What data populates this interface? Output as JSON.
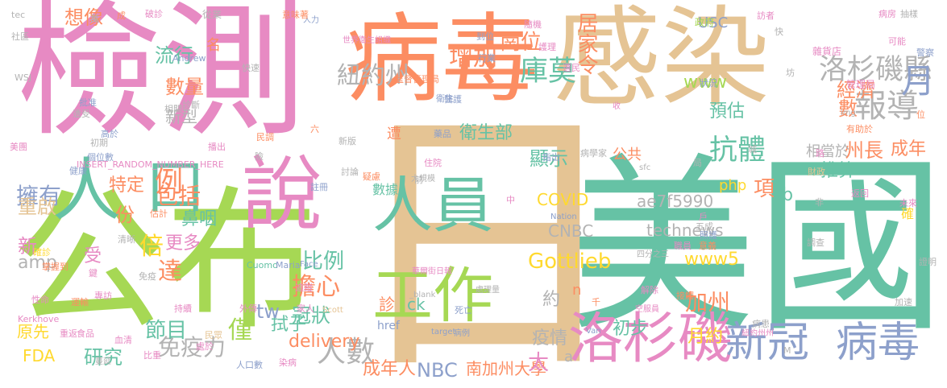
{
  "palette": {
    "pink": "#e78ac3",
    "green": "#a6d854",
    "orange": "#fc8d62",
    "teal": "#66c2a5",
    "tan": "#e5c494",
    "gray": "#b3b3b3",
    "blue": "#8da0cb",
    "yellow": "#ffd92f"
  },
  "words": [
    {
      "text": "美國",
      "color": "teal"
    },
    {
      "text": "日",
      "color": "tan"
    },
    {
      "text": "病毒",
      "color": "orange"
    },
    {
      "text": "感染",
      "color": "tan"
    },
    {
      "text": "檢測",
      "color": "pink"
    },
    {
      "text": "公布",
      "color": "green"
    },
    {
      "text": "說",
      "color": "pink"
    },
    {
      "text": "人",
      "color": "teal"
    },
    {
      "text": "口",
      "color": "teal"
    },
    {
      "text": "人員",
      "color": "teal"
    },
    {
      "text": "工作",
      "color": "green"
    },
    {
      "text": "洛杉磯",
      "color": "pink"
    },
    {
      "text": "新冠",
      "color": "blue"
    },
    {
      "text": "病毒",
      "color": "blue"
    },
    {
      "text": "報導",
      "color": "gray"
    },
    {
      "text": "洛杉磯縣",
      "color": "gray"
    },
    {
      "text": "紐約州",
      "color": "gray"
    },
    {
      "text": "增加",
      "color": "orange"
    },
    {
      "text": "崗位",
      "color": "orange"
    },
    {
      "text": "庫莫",
      "color": "teal"
    },
    {
      "text": "居家令",
      "color": "orange"
    },
    {
      "text": "抗體",
      "color": "teal"
    },
    {
      "text": "月",
      "color": "blue"
    },
    {
      "text": "經濟",
      "color": "orange"
    },
    {
      "text": "數",
      "color": "orange"
    },
    {
      "text": "州長",
      "color": "orange"
    },
    {
      "text": "成年",
      "color": "orange"
    },
    {
      "text": "人數",
      "color": "gray"
    },
    {
      "text": "免疫力",
      "color": "gray"
    },
    {
      "text": "擁有",
      "color": "blue"
    },
    {
      "text": "例",
      "color": "orange"
    },
    {
      "text": "包括",
      "color": "orange"
    },
    {
      "text": "流行",
      "color": "teal"
    },
    {
      "text": "數量",
      "color": "orange"
    },
    {
      "text": "新型",
      "color": "gray"
    },
    {
      "text": "倍",
      "color": "yellow"
    },
    {
      "text": "比例",
      "color": "teal"
    },
    {
      "text": "擔心",
      "color": "orange"
    },
    {
      "text": "冠狀",
      "color": "teal"
    },
    {
      "text": "節目",
      "color": "teal"
    },
    {
      "text": "研究",
      "color": "teal"
    },
    {
      "text": "FDA",
      "color": "yellow"
    },
    {
      "text": "原先",
      "color": "yellow"
    },
    {
      "text": "達",
      "color": "orange"
    },
    {
      "text": "受",
      "color": "pink"
    },
    {
      "text": "份",
      "color": "orange"
    },
    {
      "text": "重啟",
      "color": "tan"
    },
    {
      "text": "新",
      "color": "pink"
    },
    {
      "text": "amp",
      "color": "gray"
    },
    {
      "text": "特定",
      "color": "orange"
    },
    {
      "text": "鼻咽",
      "color": "teal"
    },
    {
      "text": "更多",
      "color": "pink"
    },
    {
      "text": "拭子",
      "color": "teal"
    },
    {
      "text": "僅",
      "color": "green"
    },
    {
      "text": "tw",
      "color": "blue"
    },
    {
      "text": "delivery",
      "color": "orange"
    },
    {
      "text": "Gottlieb",
      "color": "yellow"
    },
    {
      "text": "www5",
      "color": "yellow"
    },
    {
      "text": "www",
      "color": "green"
    },
    {
      "text": "加州",
      "color": "orange"
    },
    {
      "text": "NBC",
      "color": "blue"
    },
    {
      "text": "南加州大學",
      "color": "orange"
    },
    {
      "text": "太",
      "color": "pink"
    },
    {
      "text": "成年人",
      "color": "orange"
    },
    {
      "text": "數據",
      "color": "teal"
    },
    {
      "text": "診",
      "color": "orange"
    },
    {
      "text": "ck",
      "color": "teal"
    },
    {
      "text": "href",
      "color": "blue"
    },
    {
      "text": "衛生部",
      "color": "teal"
    },
    {
      "text": "遭",
      "color": "orange"
    },
    {
      "text": "顯示",
      "color": "teal"
    },
    {
      "text": "公共",
      "color": "orange"
    },
    {
      "text": "預估",
      "color": "teal"
    },
    {
      "text": "相當於",
      "color": "gray"
    },
    {
      "text": "USC",
      "color": "blue"
    },
    {
      "text": "推算",
      "color": "teal"
    },
    {
      "text": "cb",
      "color": "teal"
    },
    {
      "text": "php",
      "color": "yellow"
    },
    {
      "text": "項",
      "color": "orange"
    },
    {
      "text": "ae7f5990",
      "color": "gray"
    },
    {
      "text": "technews",
      "color": "gray"
    },
    {
      "text": "COVID",
      "color": "yellow"
    },
    {
      "text": "CNBC",
      "color": "gray"
    },
    {
      "text": "疫情",
      "color": "gray"
    },
    {
      "text": "約",
      "color": "gray"
    },
    {
      "text": "初步",
      "color": "teal"
    },
    {
      "text": "月約",
      "color": "yellow"
    },
    {
      "text": "想像",
      "color": "orange"
    },
    {
      "text": "名",
      "color": "orange"
    },
    {
      "text": "確",
      "color": "yellow"
    },
    {
      "text": "a",
      "color": "gray"
    },
    {
      "text": "n",
      "color": "orange"
    },
    {
      "text": "世界衛生組織",
      "color": "pink"
    },
    {
      "text": "監督管理局",
      "color": "orange"
    },
    {
      "text": "INSERT_RANDOM_NUMBER_HERE",
      "color": "pink"
    },
    {
      "text": "Andrew",
      "color": "blue"
    },
    {
      "text": "Cuomo",
      "color": "teal"
    },
    {
      "text": "Maria",
      "color": "blue"
    },
    {
      "text": "Face",
      "color": "blue"
    },
    {
      "text": "Scott",
      "color": "tan"
    },
    {
      "text": "Nation",
      "color": "blue"
    },
    {
      "text": "_blank",
      "color": "gray"
    },
    {
      "text": "target",
      "color": "blue"
    },
    {
      "text": "華爾街日報",
      "color": "pink"
    },
    {
      "text": "大規模",
      "color": "gray"
    },
    {
      "text": "Kerkhove",
      "color": "pink"
    },
    {
      "text": "Van",
      "color": "blue"
    },
    {
      "text": "WSJ",
      "color": "gray"
    },
    {
      "text": "img",
      "color": "gray"
    },
    {
      "text": "sfc",
      "color": "gray"
    },
    {
      "text": "四分之三",
      "color": "gray"
    },
    {
      "text": "空服員",
      "color": "pink"
    },
    {
      "text": "紐約州州",
      "color": "pink"
    },
    {
      "text": "處理量",
      "color": "gray"
    },
    {
      "text": "病例",
      "color": "blue"
    },
    {
      "text": "政府",
      "color": "green"
    },
    {
      "text": "管理局",
      "color": "pink"
    },
    {
      "text": "雜貨店",
      "color": "pink"
    },
    {
      "text": "病學家",
      "color": "gray"
    },
    {
      "text": "財政",
      "color": "tan"
    },
    {
      "text": "tec",
      "color": "gray"
    },
    {
      "text": "社區",
      "color": "gray"
    },
    {
      "text": "人力",
      "color": "blue"
    },
    {
      "text": "從業",
      "color": "gray"
    },
    {
      "text": "訪者",
      "color": "pink"
    },
    {
      "text": "病房",
      "color": "pink"
    },
    {
      "text": "抽樣",
      "color": "gray"
    },
    {
      "text": "可能",
      "color": "pink"
    },
    {
      "text": "警察",
      "color": "blue"
    },
    {
      "text": "護理",
      "color": "pink"
    },
    {
      "text": "行業",
      "color": "blue"
    },
    {
      "text": "到位",
      "color": "blue"
    },
    {
      "text": "選民",
      "color": "pink"
    },
    {
      "text": "狀況",
      "color": "blue"
    },
    {
      "text": "醫護",
      "color": "blue"
    },
    {
      "text": "衛生",
      "color": "blue"
    },
    {
      "text": "收",
      "color": "pink"
    },
    {
      "text": "藥品",
      "color": "blue"
    },
    {
      "text": "指出",
      "color": "blue"
    },
    {
      "text": "隨機",
      "color": "pink"
    },
    {
      "text": "快速",
      "color": "gray"
    },
    {
      "text": "相關",
      "color": "gray"
    },
    {
      "text": "診斷",
      "color": "gray"
    },
    {
      "text": "確診",
      "color": "yellow"
    },
    {
      "text": "蔓延",
      "color": "gray"
    },
    {
      "text": "家人",
      "color": "pink"
    },
    {
      "text": "民眾",
      "color": "tan"
    },
    {
      "text": "比重",
      "color": "pink"
    },
    {
      "text": "人口數",
      "color": "blue"
    },
    {
      "text": "染病",
      "color": "pink"
    },
    {
      "text": "血清",
      "color": "pink"
    },
    {
      "text": "處於",
      "color": "pink"
    },
    {
      "text": "持續",
      "color": "pink"
    },
    {
      "text": "外傳",
      "color": "pink"
    },
    {
      "text": "追蹤",
      "color": "pink"
    },
    {
      "text": "食品",
      "color": "pink"
    },
    {
      "text": "重返",
      "color": "pink"
    },
    {
      "text": "性命",
      "color": "pink"
    },
    {
      "text": "運輸",
      "color": "orange"
    },
    {
      "text": "掌握到",
      "color": "orange"
    },
    {
      "text": "免疫",
      "color": "gray"
    },
    {
      "text": "專訪",
      "color": "pink"
    },
    {
      "text": "估計",
      "color": "orange"
    },
    {
      "text": "清晰",
      "color": "gray"
    },
    {
      "text": "批准",
      "color": "blue"
    },
    {
      "text": "高於",
      "color": "blue"
    },
    {
      "text": "初期",
      "color": "gray"
    },
    {
      "text": "個位數",
      "color": "blue"
    },
    {
      "text": "健康",
      "color": "blue"
    },
    {
      "text": "遭受",
      "color": "gray"
    },
    {
      "text": "美團",
      "color": "pink"
    },
    {
      "text": "萬",
      "color": "gray"
    },
    {
      "text": "討論",
      "color": "gray"
    },
    {
      "text": "疑慮",
      "color": "orange"
    },
    {
      "text": "註冊",
      "color": "blue"
    },
    {
      "text": "播出",
      "color": "pink"
    },
    {
      "text": "病患",
      "color": "gray"
    },
    {
      "text": "解除",
      "color": "pink"
    },
    {
      "text": "接觸",
      "color": "orange"
    },
    {
      "text": "千",
      "color": "orange"
    },
    {
      "text": "死亡",
      "color": "blue"
    },
    {
      "text": "意義",
      "color": "orange"
    },
    {
      "text": "五成",
      "color": "gray"
    },
    {
      "text": "調查",
      "color": "gray"
    },
    {
      "text": "加速",
      "color": "gray"
    },
    {
      "text": "未來",
      "color": "pink"
    },
    {
      "text": "證明",
      "color": "gray"
    },
    {
      "text": "新版",
      "color": "gray"
    },
    {
      "text": "有助於",
      "color": "orange"
    },
    {
      "text": "民調",
      "color": "orange"
    },
    {
      "text": "六",
      "color": "orange"
    },
    {
      "text": "前",
      "color": "gray"
    },
    {
      "text": "住院",
      "color": "pink"
    },
    {
      "text": "位",
      "color": "orange"
    },
    {
      "text": "險",
      "color": "gray"
    },
    {
      "text": "成",
      "color": "orange"
    },
    {
      "text": "破診",
      "color": "pink"
    },
    {
      "text": "意味著",
      "color": "orange"
    },
    {
      "text": "中",
      "color": "pink"
    },
    {
      "text": "照護",
      "color": "blue"
    },
    {
      "text": "局",
      "color": "gray"
    },
    {
      "text": "快",
      "color": "gray"
    },
    {
      "text": "坊",
      "color": "gray"
    },
    {
      "text": "非",
      "color": "gray"
    },
    {
      "text": "鍵",
      "color": "pink"
    },
    {
      "text": "M",
      "color": "gray"
    },
    {
      "text": "職員",
      "color": "pink"
    },
    {
      "text": "戶",
      "color": "pink"
    },
    {
      "text": "路",
      "color": "pink"
    },
    {
      "text": "城",
      "color": "gray"
    },
    {
      "text": "返回",
      "color": "pink"
    },
    {
      "text": "分",
      "color": "pink"
    },
    {
      "text": "乃",
      "color": "gray"
    }
  ]
}
